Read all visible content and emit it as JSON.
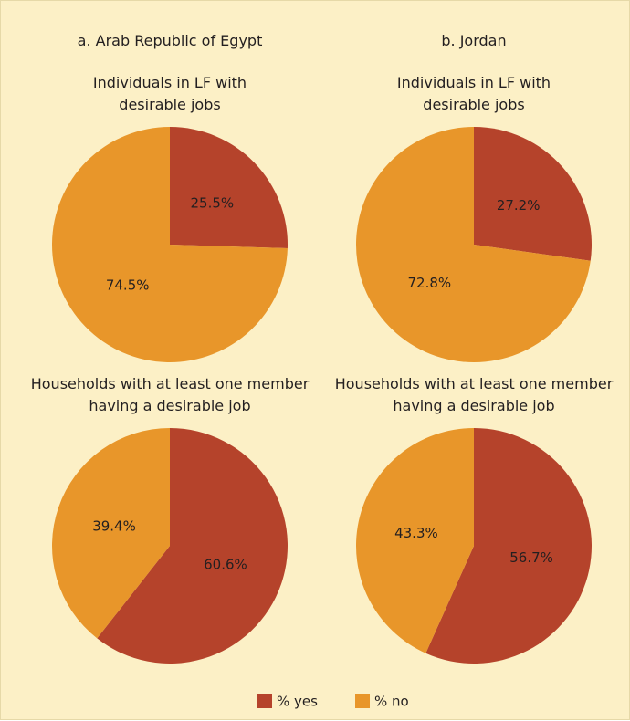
{
  "panel_titles": [
    "a. Arab Republic of Egypt",
    "b. Jordan"
  ],
  "chart_data": [
    {
      "type": "pie",
      "title": "Individuals in LF with\ndesirable jobs",
      "categories": [
        "% yes",
        "% no"
      ],
      "values": [
        25.5,
        74.5
      ],
      "value_labels": [
        "25.5%",
        "74.5%"
      ],
      "colors": [
        "#b5432b",
        "#e8962a"
      ]
    },
    {
      "type": "pie",
      "title": "Individuals in LF with\ndesirable jobs",
      "categories": [
        "% yes",
        "% no"
      ],
      "values": [
        27.2,
        72.8
      ],
      "value_labels": [
        "27.2%",
        "72.8%"
      ],
      "colors": [
        "#b5432b",
        "#e8962a"
      ]
    },
    {
      "type": "pie",
      "title": "Households with at least one member\nhaving a desirable job",
      "categories": [
        "% yes",
        "% no"
      ],
      "values": [
        60.6,
        39.4
      ],
      "value_labels": [
        "60.6%",
        "39.4%"
      ],
      "colors": [
        "#b5432b",
        "#e8962a"
      ]
    },
    {
      "type": "pie",
      "title": "Households with at least one member\nhaving a desirable job",
      "categories": [
        "% yes",
        "% no"
      ],
      "values": [
        56.7,
        43.3
      ],
      "value_labels": [
        "56.7%",
        "43.3%"
      ],
      "colors": [
        "#b5432b",
        "#e8962a"
      ]
    }
  ]
}
